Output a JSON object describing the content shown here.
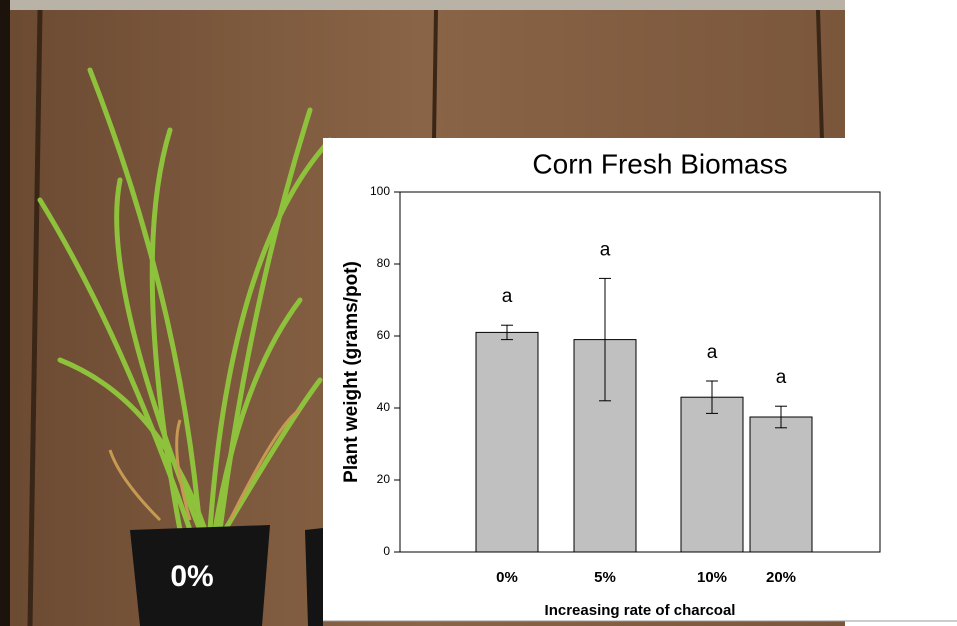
{
  "chart_data": {
    "type": "bar",
    "title": "Corn Fresh Biomass",
    "photo_label": "0%",
    "x_label": "Increasing rate of charcoal",
    "y_label": "Plant weight (grams/pot)",
    "categories": [
      "0%",
      "5%",
      "10%",
      "20%"
    ],
    "values": [
      61,
      59,
      43,
      37.5
    ],
    "errors": [
      2,
      17,
      4.5,
      3
    ],
    "annotations": [
      "a",
      "a",
      "a",
      "a"
    ],
    "color": "#c0c0c0",
    "ylim": [
      0,
      100
    ],
    "yticks": [
      0,
      20,
      40,
      60,
      80,
      100
    ]
  }
}
